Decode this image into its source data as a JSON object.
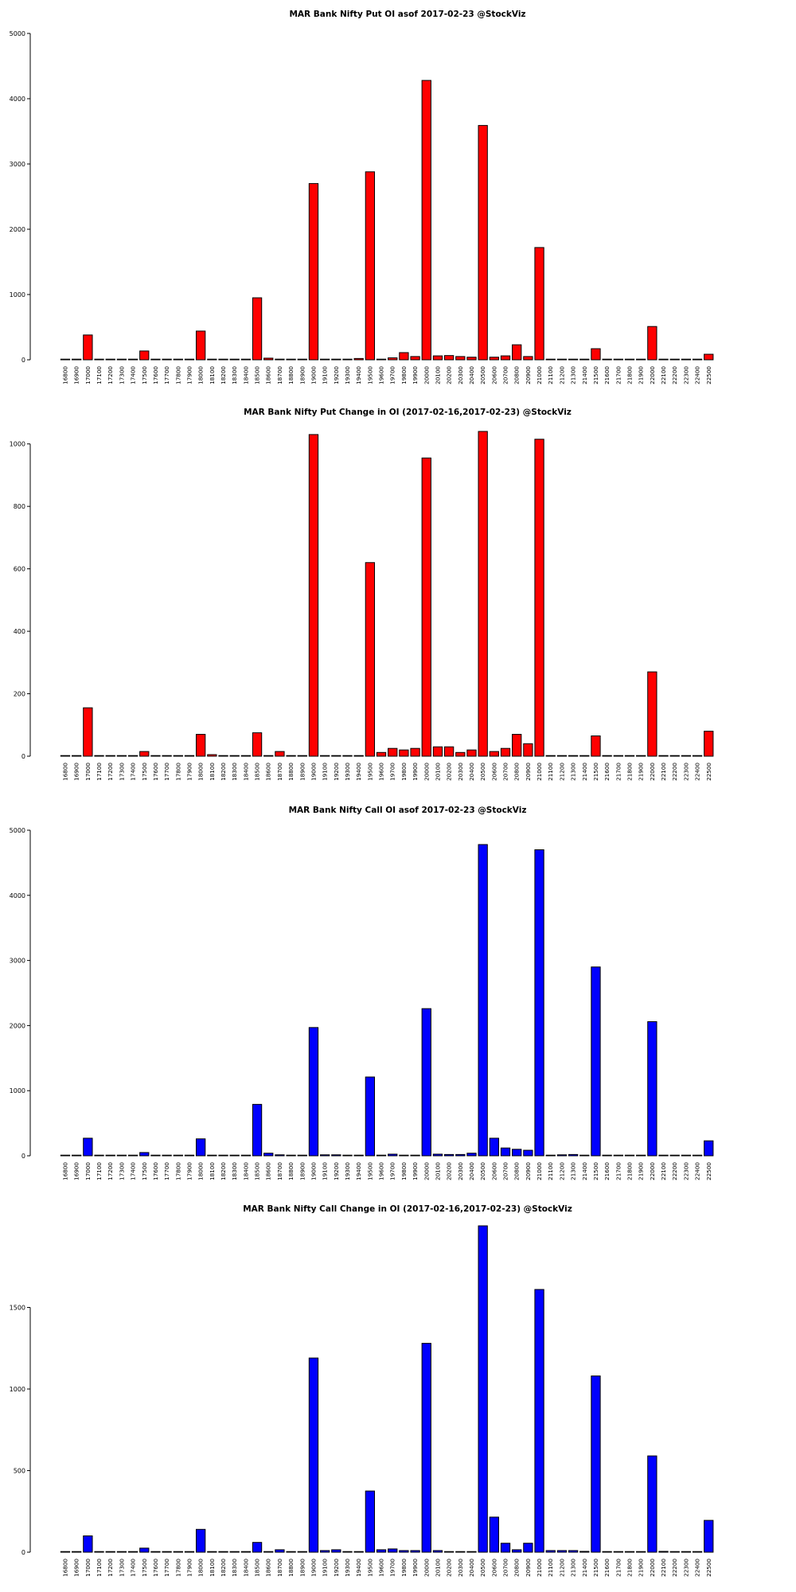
{
  "chart_data": [
    {
      "type": "bar",
      "title": "MAR Bank Nifty Put OI asof 2017-02-23 @StockViz",
      "color": "#ff0000",
      "ylim": [
        0,
        5000
      ],
      "yticks": [
        0,
        1000,
        2000,
        3000,
        4000,
        5000
      ],
      "categories": [
        "16800",
        "16900",
        "17000",
        "17100",
        "17200",
        "17300",
        "17400",
        "17500",
        "17600",
        "17700",
        "17800",
        "17900",
        "18000",
        "18100",
        "18200",
        "18300",
        "18400",
        "18500",
        "18600",
        "18700",
        "18800",
        "18900",
        "19000",
        "19100",
        "19200",
        "19300",
        "19400",
        "19500",
        "19600",
        "19700",
        "19800",
        "19900",
        "20000",
        "20100",
        "20200",
        "20300",
        "20400",
        "20500",
        "20600",
        "20700",
        "20800",
        "20900",
        "21000",
        "21100",
        "21200",
        "21300",
        "21400",
        "21500",
        "21600",
        "21700",
        "21800",
        "21900",
        "22000",
        "22100",
        "22200",
        "22300",
        "22400",
        "22500"
      ],
      "values": [
        0,
        0,
        380,
        0,
        0,
        0,
        0,
        135,
        0,
        0,
        0,
        0,
        440,
        0,
        0,
        0,
        0,
        950,
        25,
        10,
        0,
        0,
        2700,
        0,
        0,
        0,
        20,
        2880,
        0,
        30,
        110,
        50,
        4280,
        60,
        65,
        50,
        40,
        3590,
        40,
        60,
        230,
        50,
        1720,
        0,
        0,
        0,
        0,
        170,
        0,
        0,
        0,
        0,
        510,
        0,
        0,
        0,
        0,
        85
      ]
    },
    {
      "type": "bar",
      "title": "MAR Bank Nifty Put Change in OI (2017-02-16,2017-02-23) @StockViz",
      "color": "#ff0000",
      "ylim": [
        0,
        1040
      ],
      "yticks": [
        0,
        200,
        400,
        600,
        800,
        1000
      ],
      "categories": [
        "16800",
        "16900",
        "17000",
        "17100",
        "17200",
        "17300",
        "17400",
        "17500",
        "17600",
        "17700",
        "17800",
        "17900",
        "18000",
        "18100",
        "18200",
        "18300",
        "18400",
        "18500",
        "18600",
        "18700",
        "18800",
        "18900",
        "19000",
        "19100",
        "19200",
        "19300",
        "19400",
        "19500",
        "19600",
        "19700",
        "19800",
        "19900",
        "20000",
        "20100",
        "20200",
        "20300",
        "20400",
        "20500",
        "20600",
        "20700",
        "20800",
        "20900",
        "21000",
        "21100",
        "21200",
        "21300",
        "21400",
        "21500",
        "21600",
        "21700",
        "21800",
        "21900",
        "22000",
        "22100",
        "22200",
        "22300",
        "22400",
        "22500"
      ],
      "values": [
        0,
        0,
        155,
        0,
        0,
        0,
        0,
        15,
        0,
        0,
        0,
        0,
        70,
        5,
        0,
        0,
        0,
        75,
        0,
        15,
        0,
        0,
        1030,
        0,
        0,
        0,
        0,
        620,
        12,
        25,
        20,
        25,
        955,
        30,
        30,
        12,
        20,
        1040,
        15,
        25,
        70,
        40,
        1015,
        0,
        0,
        0,
        0,
        65,
        0,
        0,
        0,
        0,
        270,
        0,
        0,
        0,
        0,
        80
      ]
    },
    {
      "type": "bar",
      "title": "MAR Bank Nifty Call OI asof 2017-02-23 @StockViz",
      "color": "#0000ff",
      "ylim": [
        0,
        5000
      ],
      "yticks": [
        0,
        1000,
        2000,
        3000,
        4000,
        5000
      ],
      "categories": [
        "16800",
        "16900",
        "17000",
        "17100",
        "17200",
        "17300",
        "17400",
        "17500",
        "17600",
        "17700",
        "17800",
        "17900",
        "18000",
        "18100",
        "18200",
        "18300",
        "18400",
        "18500",
        "18600",
        "18700",
        "18800",
        "18900",
        "19000",
        "19100",
        "19200",
        "19300",
        "19400",
        "19500",
        "19600",
        "19700",
        "19800",
        "19900",
        "20000",
        "20100",
        "20200",
        "20300",
        "20400",
        "20500",
        "20600",
        "20700",
        "20800",
        "20900",
        "21000",
        "21100",
        "21200",
        "21300",
        "21400",
        "21500",
        "21600",
        "21700",
        "21800",
        "21900",
        "22000",
        "22100",
        "22200",
        "22300",
        "22400",
        "22500"
      ],
      "values": [
        0,
        0,
        270,
        0,
        0,
        0,
        0,
        50,
        0,
        0,
        0,
        0,
        260,
        0,
        0,
        0,
        0,
        790,
        40,
        15,
        0,
        0,
        1970,
        15,
        15,
        0,
        0,
        1210,
        0,
        25,
        0,
        0,
        2260,
        25,
        20,
        20,
        40,
        4780,
        270,
        120,
        100,
        85,
        4700,
        0,
        15,
        20,
        0,
        2900,
        0,
        0,
        0,
        0,
        2060,
        0,
        0,
        0,
        0,
        230
      ]
    },
    {
      "type": "bar",
      "title": "MAR Bank Nifty Call Change in OI (2017-02-16,2017-02-23) @StockViz",
      "color": "#0000ff",
      "ylim": [
        0,
        2000
      ],
      "yticks": [
        0,
        500,
        1000,
        1500
      ],
      "categories": [
        "16800",
        "16900",
        "17000",
        "17100",
        "17200",
        "17300",
        "17400",
        "17500",
        "17600",
        "17700",
        "17800",
        "17900",
        "18000",
        "18100",
        "18200",
        "18300",
        "18400",
        "18500",
        "18600",
        "18700",
        "18800",
        "18900",
        "19000",
        "19100",
        "19200",
        "19300",
        "19400",
        "19500",
        "19600",
        "19700",
        "19800",
        "19900",
        "20000",
        "20100",
        "20200",
        "20300",
        "20400",
        "20500",
        "20600",
        "20700",
        "20800",
        "20900",
        "21000",
        "21100",
        "21200",
        "21300",
        "21400",
        "21500",
        "21600",
        "21700",
        "21800",
        "21900",
        "22000",
        "22100",
        "22200",
        "22300",
        "22400",
        "22500"
      ],
      "values": [
        0,
        0,
        100,
        0,
        0,
        0,
        0,
        25,
        0,
        0,
        0,
        0,
        140,
        0,
        0,
        0,
        0,
        60,
        0,
        15,
        0,
        0,
        1190,
        10,
        15,
        0,
        0,
        375,
        15,
        20,
        10,
        10,
        1280,
        10,
        0,
        0,
        0,
        2000,
        215,
        55,
        15,
        55,
        1610,
        10,
        10,
        10,
        5,
        1080,
        0,
        0,
        0,
        0,
        590,
        5,
        0,
        0,
        0,
        195
      ]
    }
  ]
}
